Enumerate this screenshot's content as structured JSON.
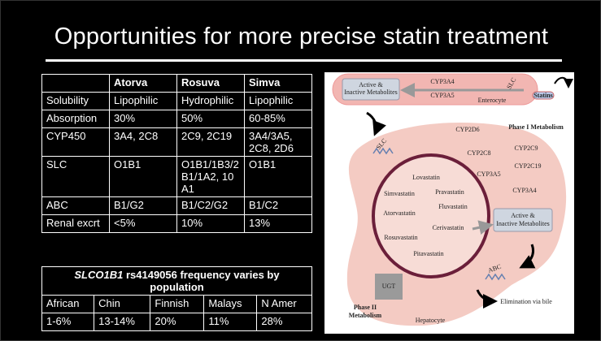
{
  "title": "Opportunities for more precise statin treatment",
  "table": {
    "headers": [
      "Atorva",
      "Rosuva",
      "Simva"
    ],
    "rows": [
      [
        "Solubility",
        "Lipophilic",
        "Hydrophilic",
        "Lipophilic"
      ],
      [
        "Absorption",
        "30%",
        "50%",
        "60-85%"
      ],
      [
        "CYP450",
        "3A4, 2C8",
        "2C9, 2C19",
        "3A4/3A5, 2C8, 2D6"
      ],
      [
        "SLC",
        "O1B1",
        "O1B1/1B3/2B1/1A2, 10A1",
        "O1B1"
      ],
      [
        "ABC",
        "B1/G2",
        "B1/C2/G2",
        "B1/C2"
      ],
      [
        "Renal excrt",
        "<5%",
        "10%",
        "13%"
      ]
    ]
  },
  "frequency_table": {
    "title": {
      "gene": "SLCO1B1",
      "text": "rs4149056 frequency varies by population"
    },
    "headers": [
      "African",
      "Chin",
      "Finnish",
      "Malays",
      "N Amer"
    ],
    "values": [
      "1-6%",
      "13-14%",
      "20%",
      "11%",
      "28%"
    ]
  },
  "diagram": {
    "labels": [
      "CYP3A4",
      "CYP3A5",
      "Active &",
      "Inactive Metabolites",
      "Enterocyte",
      "Statins",
      "SLC",
      "SLC",
      "Phase I Metabolism",
      "CYP2D6",
      "CYP2C8",
      "CYP2C9",
      "CYP2C19",
      "CYP3A5",
      "CYP3A4",
      "Lovastatin",
      "Simvastatin",
      "Pravastatin",
      "Atorvastatin",
      "Fluvastatin",
      "Cerivastatin",
      "Rosuvastatin",
      "Pitavastatin",
      "Active &",
      "Inactive Metabolites",
      "ABC",
      "UGT",
      "Phase II",
      "Metabolism",
      "Hepatocyte",
      "Elimination via bile"
    ]
  }
}
